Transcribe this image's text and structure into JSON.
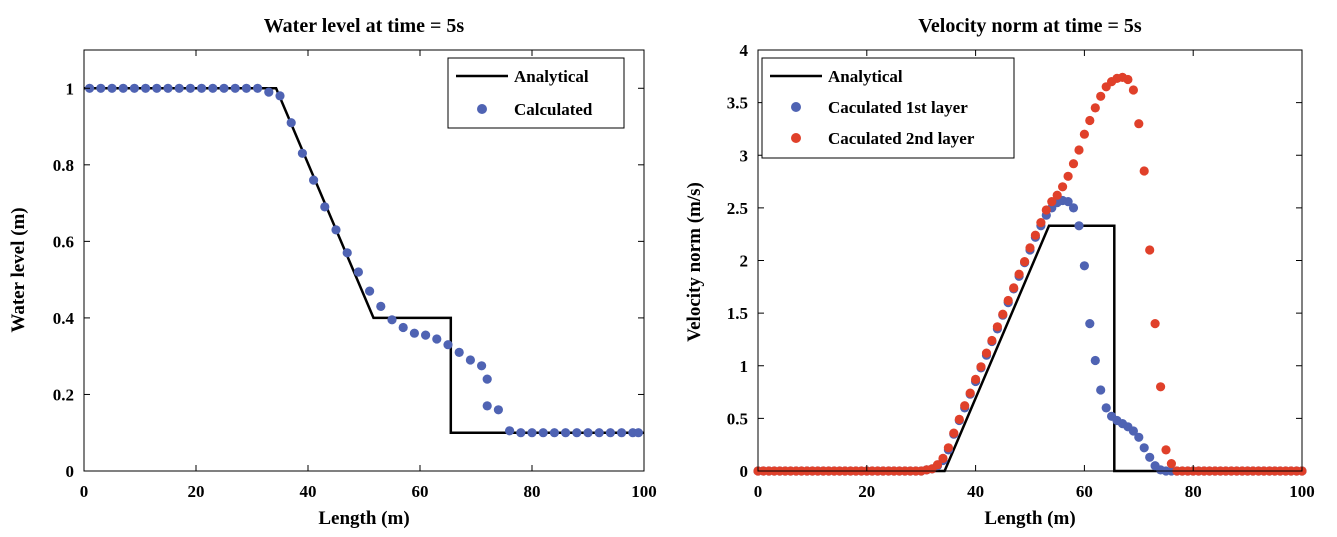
{
  "chart_data": [
    {
      "type": "line",
      "title": "Water level at time =  5s",
      "xlabel": "Length (m)",
      "ylabel": "Water level (m)",
      "xlim": [
        0,
        100
      ],
      "ylim": [
        0,
        1.1
      ],
      "xticks": [
        0,
        20,
        40,
        60,
        80,
        100
      ],
      "yticks": [
        0,
        0.2,
        0.4,
        0.6,
        0.8,
        1
      ],
      "grid": false,
      "legend_position": "top-right",
      "series": [
        {
          "name": "Analytical",
          "kind": "line",
          "color": "#000000",
          "x": [
            0,
            34.3,
            51.7,
            65.5,
            65.5,
            100
          ],
          "y": [
            1.0,
            1.0,
            0.4,
            0.4,
            0.1,
            0.1
          ]
        },
        {
          "name": "Calculated",
          "kind": "scatter",
          "color": "#4f63b3",
          "x": [
            1,
            3,
            5,
            7,
            9,
            11,
            13,
            15,
            17,
            19,
            21,
            23,
            25,
            27,
            29,
            31,
            33,
            35,
            37,
            39,
            41,
            43,
            45,
            47,
            49,
            51,
            53,
            55,
            57,
            59,
            61,
            63,
            65,
            67,
            69,
            71,
            72,
            72,
            74,
            76,
            78,
            80,
            82,
            84,
            86,
            88,
            90,
            92,
            94,
            96,
            98,
            99
          ],
          "y": [
            1.0,
            1.0,
            1.0,
            1.0,
            1.0,
            1.0,
            1.0,
            1.0,
            1.0,
            1.0,
            1.0,
            1.0,
            1.0,
            1.0,
            1.0,
            1.0,
            0.99,
            0.98,
            0.91,
            0.83,
            0.76,
            0.69,
            0.63,
            0.57,
            0.52,
            0.47,
            0.43,
            0.395,
            0.375,
            0.36,
            0.355,
            0.345,
            0.33,
            0.31,
            0.29,
            0.275,
            0.24,
            0.17,
            0.16,
            0.105,
            0.1,
            0.1,
            0.1,
            0.1,
            0.1,
            0.1,
            0.1,
            0.1,
            0.1,
            0.1,
            0.1,
            0.1
          ]
        }
      ]
    },
    {
      "type": "line",
      "title": "Velocity norm at time =  5s",
      "xlabel": "Length (m)",
      "ylabel": "Velocity norm (m/s)",
      "xlim": [
        0,
        100
      ],
      "ylim": [
        0,
        4
      ],
      "xticks": [
        0,
        20,
        40,
        60,
        80,
        100
      ],
      "yticks": [
        0,
        0.5,
        1,
        1.5,
        2,
        2.5,
        3,
        3.5,
        4
      ],
      "grid": false,
      "legend_position": "top-left",
      "series": [
        {
          "name": "Analytical",
          "kind": "line",
          "color": "#000000",
          "x": [
            0,
            34.3,
            53.5,
            65.5,
            65.5,
            100
          ],
          "y": [
            0,
            0,
            2.33,
            2.33,
            0,
            0
          ]
        },
        {
          "name": "Caculated 1st layer",
          "kind": "scatter",
          "color": "#4f63b3",
          "x": [
            0,
            1,
            2,
            3,
            4,
            5,
            6,
            7,
            8,
            9,
            10,
            11,
            12,
            13,
            14,
            15,
            16,
            17,
            18,
            19,
            20,
            21,
            22,
            23,
            24,
            25,
            26,
            27,
            28,
            29,
            30,
            31,
            32,
            33,
            34,
            35,
            36,
            37,
            38,
            39,
            40,
            41,
            42,
            43,
            44,
            45,
            46,
            47,
            48,
            49,
            50,
            51,
            52,
            53,
            54,
            55,
            56,
            57,
            58,
            59,
            60,
            61,
            62,
            63,
            64,
            65,
            66,
            67,
            68,
            69,
            70,
            71,
            72,
            73,
            74,
            75,
            76,
            77,
            78,
            79,
            80,
            81,
            82,
            83,
            84,
            85,
            86,
            87,
            88,
            89,
            90,
            91,
            92,
            93,
            94,
            95,
            96,
            97,
            98,
            99,
            100
          ],
          "y": [
            0,
            0,
            0,
            0,
            0,
            0,
            0,
            0,
            0,
            0,
            0,
            0,
            0,
            0,
            0,
            0,
            0,
            0,
            0,
            0,
            0,
            0,
            0,
            0,
            0,
            0,
            0,
            0,
            0,
            0,
            0,
            0.01,
            0.02,
            0.05,
            0.1,
            0.2,
            0.35,
            0.48,
            0.6,
            0.73,
            0.85,
            0.98,
            1.1,
            1.23,
            1.35,
            1.48,
            1.6,
            1.73,
            1.85,
            1.98,
            2.1,
            2.22,
            2.33,
            2.43,
            2.5,
            2.55,
            2.57,
            2.56,
            2.5,
            2.33,
            1.95,
            1.4,
            1.05,
            0.77,
            0.6,
            0.52,
            0.48,
            0.45,
            0.42,
            0.38,
            0.32,
            0.22,
            0.13,
            0.05,
            0.01,
            0,
            0,
            0,
            0,
            0,
            0,
            0,
            0,
            0,
            0,
            0,
            0,
            0,
            0,
            0,
            0,
            0,
            0,
            0,
            0,
            0,
            0,
            0,
            0,
            0,
            0
          ]
        },
        {
          "name": "Caculated 2nd layer",
          "kind": "scatter",
          "color": "#e0402a",
          "x": [
            0,
            1,
            2,
            3,
            4,
            5,
            6,
            7,
            8,
            9,
            10,
            11,
            12,
            13,
            14,
            15,
            16,
            17,
            18,
            19,
            20,
            21,
            22,
            23,
            24,
            25,
            26,
            27,
            28,
            29,
            30,
            31,
            32,
            33,
            34,
            35,
            36,
            37,
            38,
            39,
            40,
            41,
            42,
            43,
            44,
            45,
            46,
            47,
            48,
            49,
            50,
            51,
            52,
            53,
            54,
            55,
            56,
            57,
            58,
            59,
            60,
            61,
            62,
            63,
            64,
            65,
            66,
            67,
            68,
            69,
            70,
            71,
            72,
            73,
            74,
            75,
            76,
            77,
            78,
            79,
            80,
            81,
            82,
            83,
            84,
            85,
            86,
            87,
            88,
            89,
            90,
            91,
            92,
            93,
            94,
            95,
            96,
            97,
            98,
            99,
            100
          ],
          "y": [
            0,
            0,
            0,
            0,
            0,
            0,
            0,
            0,
            0,
            0,
            0,
            0,
            0,
            0,
            0,
            0,
            0,
            0,
            0,
            0,
            0,
            0,
            0,
            0,
            0,
            0,
            0,
            0,
            0,
            0,
            0,
            0.01,
            0.02,
            0.06,
            0.12,
            0.22,
            0.36,
            0.49,
            0.62,
            0.74,
            0.87,
            0.99,
            1.12,
            1.24,
            1.37,
            1.49,
            1.62,
            1.74,
            1.87,
            1.99,
            2.12,
            2.24,
            2.36,
            2.48,
            2.56,
            2.62,
            2.7,
            2.8,
            2.92,
            3.05,
            3.2,
            3.33,
            3.45,
            3.56,
            3.65,
            3.7,
            3.73,
            3.74,
            3.72,
            3.62,
            3.3,
            2.85,
            2.1,
            1.4,
            0.8,
            0.2,
            0.07,
            0,
            0,
            0,
            0,
            0,
            0,
            0,
            0,
            0,
            0,
            0,
            0,
            0,
            0,
            0,
            0,
            0,
            0,
            0,
            0,
            0,
            0,
            0,
            0
          ]
        }
      ]
    }
  ]
}
